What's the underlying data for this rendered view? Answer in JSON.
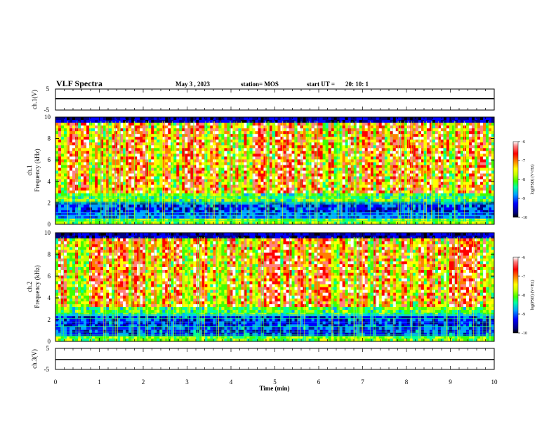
{
  "header": {
    "title": "VLF Spectra",
    "date": "May 3 , 2023",
    "station": "station= MOS",
    "start": "start UT =",
    "start_time": "20: 10: 1"
  },
  "chart_data": {
    "type": "heatmap",
    "xlabel": "Time (min)",
    "xlim": [
      0,
      10
    ],
    "xticks": [
      "0",
      "1",
      "2",
      "3",
      "4",
      "5",
      "6",
      "7",
      "8",
      "9",
      "10"
    ],
    "panels": [
      {
        "id": "ch1_waveform",
        "type": "line",
        "ylabel": "ch.1(V)",
        "ylim": [
          -5,
          5
        ],
        "yticks": [
          "5",
          "-5"
        ],
        "level": 0.4
      },
      {
        "id": "ch1_spectrogram",
        "type": "heatmap",
        "ylabel_line1": "ch.1",
        "ylabel_line2": "Frequency (kHz)",
        "ylim": [
          0,
          10
        ],
        "yticks": [
          "0",
          "2",
          "4",
          "6",
          "8",
          "10"
        ]
      },
      {
        "id": "ch2_spectrogram",
        "type": "heatmap",
        "ylabel_line1": "ch.2",
        "ylabel_line2": "Frequency (kHz)",
        "ylim": [
          0,
          10
        ],
        "yticks": [
          "0",
          "2",
          "4",
          "6",
          "8",
          "10"
        ]
      },
      {
        "id": "ch3_waveform",
        "type": "line",
        "ylabel": "ch.3(V)",
        "ylim": [
          -5,
          5
        ],
        "yticks": [
          "5",
          "-5"
        ],
        "level": -0.3
      }
    ],
    "colorbar": {
      "label": "log(PSD) (V²/Hz)",
      "range": [
        -10,
        -6
      ],
      "ticks": [
        "-6",
        "-7",
        "-8",
        "-9",
        "-10"
      ],
      "colors": [
        "#000000",
        "#000080",
        "#0000ff",
        "#00a0ff",
        "#00ffa0",
        "#40ff00",
        "#c0ff00",
        "#ffff00",
        "#ff8000",
        "#ff0000",
        "#ff8080",
        "#ffffff"
      ]
    }
  }
}
